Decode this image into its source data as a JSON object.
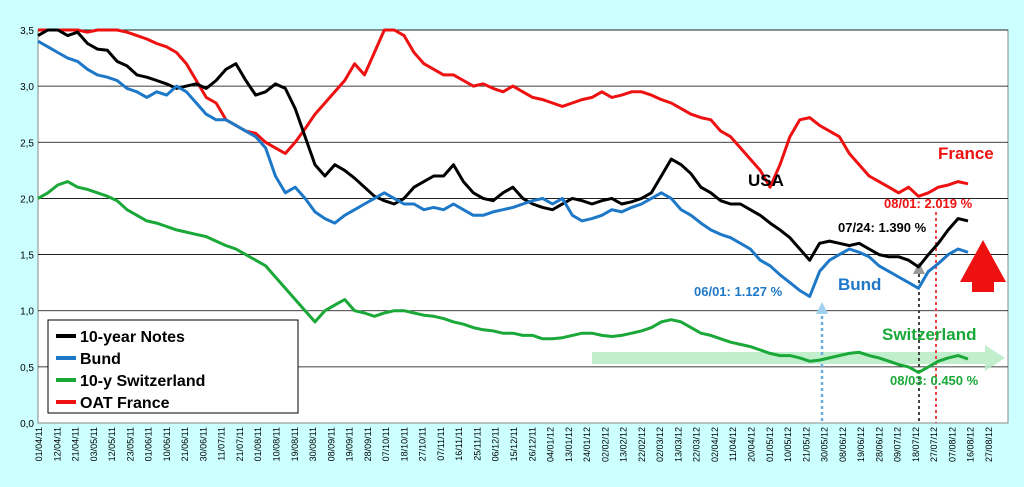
{
  "chart_data": {
    "type": "line",
    "title": "",
    "xlabel": "",
    "ylabel": "",
    "ylim": [
      0,
      3.5
    ],
    "yticks": [
      "0,0",
      "0,5",
      "1,0",
      "1,5",
      "2,0",
      "2,5",
      "3,0",
      "3,5"
    ],
    "yticks_values": [
      0,
      0.5,
      1,
      1.5,
      2,
      2.5,
      3,
      3.5
    ],
    "grid": true,
    "legend_position": "bottom-left",
    "x_labels": [
      "01/04/11",
      "12/04/11",
      "21/04/11",
      "03/05/11",
      "12/05/11",
      "23/05/11",
      "01/06/11",
      "10/06/11",
      "21/06/11",
      "30/06/11",
      "11/07/11",
      "21/07/11",
      "01/08/11",
      "10/08/11",
      "19/08/11",
      "30/08/11",
      "08/09/11",
      "19/09/11",
      "28/09/11",
      "07/10/11",
      "18/10/11",
      "27/10/11",
      "07/11/11",
      "16/11/11",
      "25/11/11",
      "06/12/11",
      "15/12/11",
      "26/12/11",
      "04/01/12",
      "13/01/12",
      "24/01/12",
      "02/02/12",
      "13/02/12",
      "22/02/12",
      "02/03/12",
      "13/03/12",
      "22/03/12",
      "02/04/12",
      "11/04/12",
      "20/04/12",
      "01/05/12",
      "10/05/12",
      "21/05/12",
      "30/05/12",
      "08/06/12",
      "19/06/12",
      "28/06/12",
      "09/07/12",
      "18/07/12",
      "27/07/12",
      "07/08/12",
      "16/08/12",
      "27/08/12"
    ],
    "series": [
      {
        "name": "10-year Notes",
        "color": "#000000",
        "values": [
          3.45,
          3.5,
          3.52,
          3.45,
          3.48,
          3.38,
          3.33,
          3.32,
          3.22,
          3.18,
          3.1,
          3.08,
          3.05,
          3.02,
          2.98,
          3.0,
          3.02,
          2.98,
          3.05,
          3.15,
          3.2,
          3.05,
          2.92,
          2.95,
          3.02,
          2.98,
          2.8,
          2.55,
          2.3,
          2.2,
          2.3,
          2.25,
          2.18,
          2.1,
          2.02,
          1.98,
          1.95,
          2.0,
          2.1,
          2.15,
          2.2,
          2.2,
          2.3,
          2.15,
          2.05,
          2.0,
          1.98,
          2.05,
          2.1,
          2.0,
          1.95,
          1.92,
          1.9,
          1.95,
          2.0,
          1.98,
          1.95,
          1.98,
          2.0,
          1.95,
          1.97,
          2.0,
          2.05,
          2.2,
          2.35,
          2.3,
          2.22,
          2.1,
          2.05,
          1.98,
          1.95,
          1.95,
          1.9,
          1.85,
          1.78,
          1.72,
          1.65,
          1.55,
          1.45,
          1.6,
          1.62,
          1.6,
          1.58,
          1.6,
          1.55,
          1.5,
          1.48,
          1.48,
          1.45,
          1.39,
          1.5,
          1.6,
          1.72,
          1.82,
          1.8
        ]
      },
      {
        "name": "Bund",
        "color": "#1e78c8",
        "values": [
          3.4,
          3.35,
          3.3,
          3.25,
          3.22,
          3.15,
          3.1,
          3.08,
          3.05,
          2.98,
          2.95,
          2.9,
          2.95,
          2.92,
          3.0,
          2.95,
          2.85,
          2.75,
          2.7,
          2.7,
          2.65,
          2.6,
          2.55,
          2.45,
          2.2,
          2.05,
          2.1,
          2.0,
          1.88,
          1.82,
          1.78,
          1.85,
          1.9,
          1.95,
          2.0,
          2.05,
          2.0,
          1.95,
          1.95,
          1.9,
          1.92,
          1.9,
          1.95,
          1.9,
          1.85,
          1.85,
          1.88,
          1.9,
          1.92,
          1.95,
          1.98,
          2.0,
          1.95,
          2.0,
          1.85,
          1.8,
          1.82,
          1.85,
          1.9,
          1.88,
          1.92,
          1.95,
          2.0,
          2.05,
          2.0,
          1.9,
          1.85,
          1.78,
          1.72,
          1.68,
          1.65,
          1.6,
          1.55,
          1.45,
          1.4,
          1.32,
          1.25,
          1.18,
          1.127,
          1.35,
          1.45,
          1.5,
          1.55,
          1.52,
          1.48,
          1.4,
          1.35,
          1.3,
          1.25,
          1.2,
          1.35,
          1.42,
          1.5,
          1.55,
          1.52
        ]
      },
      {
        "name": "10-y Switzerland",
        "color": "#1aa838",
        "values": [
          2.0,
          2.05,
          2.12,
          2.15,
          2.1,
          2.08,
          2.05,
          2.02,
          1.98,
          1.9,
          1.85,
          1.8,
          1.78,
          1.75,
          1.72,
          1.7,
          1.68,
          1.66,
          1.62,
          1.58,
          1.55,
          1.5,
          1.45,
          1.4,
          1.3,
          1.2,
          1.1,
          1.0,
          0.9,
          1.0,
          1.05,
          1.1,
          1.0,
          0.98,
          0.95,
          0.98,
          1.0,
          1.0,
          0.98,
          0.96,
          0.95,
          0.93,
          0.9,
          0.88,
          0.85,
          0.83,
          0.82,
          0.8,
          0.8,
          0.78,
          0.78,
          0.75,
          0.75,
          0.76,
          0.78,
          0.8,
          0.8,
          0.78,
          0.77,
          0.78,
          0.8,
          0.82,
          0.85,
          0.9,
          0.92,
          0.9,
          0.85,
          0.8,
          0.78,
          0.75,
          0.72,
          0.7,
          0.68,
          0.65,
          0.62,
          0.6,
          0.6,
          0.58,
          0.55,
          0.56,
          0.58,
          0.6,
          0.62,
          0.63,
          0.6,
          0.58,
          0.55,
          0.52,
          0.5,
          0.45,
          0.5,
          0.55,
          0.58,
          0.6,
          0.57
        ]
      },
      {
        "name": "OAT France",
        "color": "#ee1111",
        "values": [
          3.6,
          3.58,
          3.55,
          3.52,
          3.5,
          3.48,
          3.5,
          3.52,
          3.5,
          3.48,
          3.45,
          3.42,
          3.38,
          3.35,
          3.3,
          3.2,
          3.05,
          2.9,
          2.85,
          2.7,
          2.65,
          2.6,
          2.58,
          2.5,
          2.45,
          2.4,
          2.5,
          2.62,
          2.75,
          2.85,
          2.95,
          3.05,
          3.2,
          3.1,
          3.3,
          3.55,
          3.6,
          3.45,
          3.3,
          3.2,
          3.15,
          3.1,
          3.1,
          3.05,
          3.0,
          3.02,
          2.98,
          2.95,
          3.0,
          2.95,
          2.9,
          2.88,
          2.85,
          2.82,
          2.85,
          2.88,
          2.9,
          2.95,
          2.9,
          2.92,
          2.95,
          2.95,
          2.92,
          2.88,
          2.85,
          2.8,
          2.75,
          2.72,
          2.7,
          2.6,
          2.55,
          2.45,
          2.35,
          2.25,
          2.1,
          2.3,
          2.55,
          2.7,
          2.72,
          2.65,
          2.6,
          2.55,
          2.4,
          2.3,
          2.2,
          2.15,
          2.1,
          2.05,
          2.1,
          2.019,
          2.05,
          2.1,
          2.12,
          2.15,
          2.13
        ]
      }
    ],
    "annotations": {
      "usa": "USA",
      "france": "France",
      "bund": "Bund",
      "switzerland": "Switzerland",
      "bund_low": "06/01: 1.127 %",
      "usa_low": "07/24: 1.390 %",
      "france_low": "08/01: 2.019 %",
      "swiss_low": "08/03: 0.450 %"
    }
  }
}
